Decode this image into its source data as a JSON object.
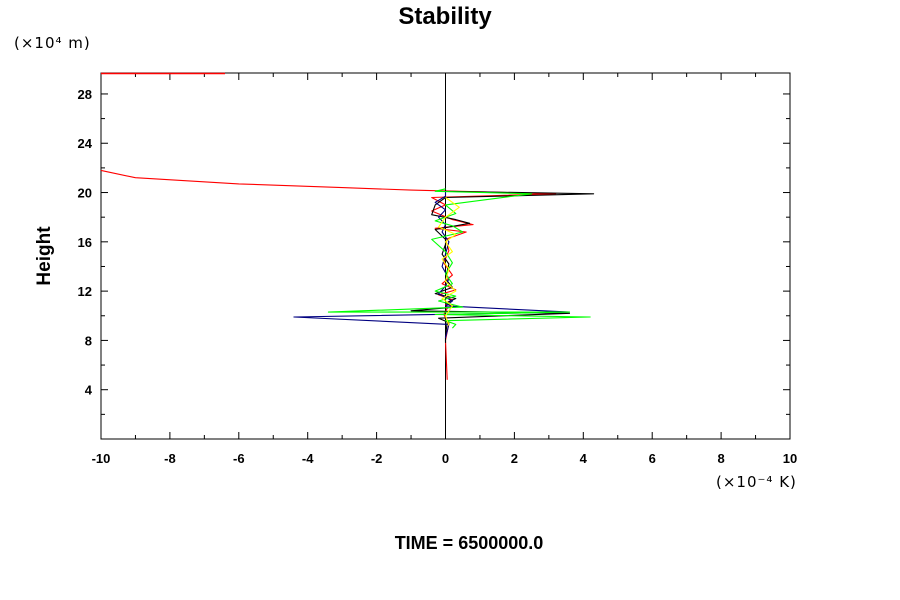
{
  "chart_data": {
    "type": "line",
    "title": "Stability",
    "ylabel": "Height",
    "xlabel": "",
    "x_unit": "(×10⁻⁴ K)",
    "y_unit": "(×10⁴ m)",
    "annotation": "TIME = 6500000.0",
    "xlim": [
      -10,
      10
    ],
    "ylim": [
      0,
      29.7
    ],
    "x_ticks": [
      -10,
      -8,
      -6,
      -4,
      -2,
      0,
      2,
      4,
      6,
      8,
      10
    ],
    "x_tick_labels": [
      "-10",
      "-8",
      "-6",
      "-4",
      "-2",
      "0",
      "2",
      "4",
      "6",
      "8",
      "10"
    ],
    "y_ticks": [
      4,
      8,
      12,
      16,
      20,
      24,
      28
    ],
    "y_tick_labels": [
      "4",
      "8",
      "12",
      "16",
      "20",
      "24",
      "28"
    ],
    "grid": false,
    "zero_line": true,
    "series": [
      {
        "color": "#ff0000",
        "x": [
          0.05,
          0.0,
          0.1,
          -0.05,
          0.05,
          0.0,
          0.2,
          -0.2,
          0.3,
          -0.1,
          0.2,
          -0.05,
          0.1,
          0.0,
          0.6,
          -0.3,
          0.8,
          0.2,
          -0.4,
          0.0,
          -0.4,
          3.2,
          -1.0,
          -3.0,
          -6.0,
          -9.0,
          -10.0
        ],
        "y": [
          4.8,
          8.0,
          9.4,
          10.1,
          10.6,
          11.0,
          11.3,
          11.7,
          12.1,
          12.6,
          13.3,
          14.3,
          15.3,
          16.2,
          16.8,
          17.1,
          17.4,
          17.8,
          18.5,
          19.0,
          19.6,
          19.9,
          20.2,
          20.4,
          20.7,
          21.2,
          21.8
        ]
      },
      {
        "color": "#000000",
        "x": [
          0.0,
          0.0,
          0.05,
          -0.2,
          3.6,
          -1.0,
          0.3,
          0.0,
          0.3,
          -0.3,
          0.2,
          0.0,
          0.1,
          -0.1,
          0.0,
          0.0,
          -0.3,
          0.7,
          0.3,
          -0.4,
          -0.3,
          0.0,
          4.3,
          0.0,
          0.0
        ],
        "y": [
          7.8,
          8.3,
          9.5,
          9.8,
          10.2,
          10.4,
          10.7,
          11.0,
          11.4,
          11.8,
          12.3,
          13.0,
          14.2,
          15.0,
          15.8,
          16.2,
          17.0,
          17.5,
          17.8,
          18.2,
          19.0,
          19.6,
          19.9,
          20.1,
          20.3
        ]
      },
      {
        "color": "#000080",
        "x": [
          0.0,
          0.1,
          -4.4,
          3.6,
          0.0,
          0.2,
          -0.2,
          0.0,
          0.1,
          -0.1,
          0.0,
          0.1,
          -0.1,
          0.0,
          -0.2,
          0.0,
          -0.3,
          0.0,
          0.0
        ],
        "y": [
          8.2,
          9.3,
          9.9,
          10.3,
          10.8,
          11.2,
          11.8,
          12.4,
          13.0,
          14.0,
          15.0,
          16.0,
          16.8,
          17.4,
          18.0,
          18.6,
          19.2,
          19.7,
          20.1
        ]
      },
      {
        "color": "#00ff00",
        "x": [
          0.2,
          0.3,
          0.0,
          4.2,
          -0.3,
          3.6,
          -3.4,
          0.5,
          -0.2,
          0.3,
          -0.3,
          0.2,
          0.0,
          0.2,
          0.0,
          -0.4,
          0.5,
          0.2,
          -0.3,
          0.3,
          0.0,
          2.5,
          -0.3,
          0.0
        ],
        "y": [
          9.0,
          9.3,
          9.6,
          9.9,
          10.1,
          10.3,
          10.3,
          10.7,
          11.2,
          11.6,
          12.0,
          12.6,
          13.4,
          14.3,
          15.2,
          16.2,
          16.8,
          17.3,
          17.7,
          18.3,
          19.0,
          19.9,
          20.1,
          20.3
        ]
      },
      {
        "color": "#ffff00",
        "x": [
          0.1,
          0.0,
          0.2,
          -0.1,
          0.3,
          0.0,
          0.1,
          -0.1,
          0.2,
          0.0,
          0.3,
          -0.2,
          0.0,
          0.4,
          0.0
        ],
        "y": [
          9.2,
          10.0,
          10.8,
          11.4,
          12.0,
          12.8,
          13.8,
          14.6,
          15.2,
          16.0,
          16.6,
          17.2,
          18.0,
          18.8,
          19.6
        ]
      }
    ]
  }
}
